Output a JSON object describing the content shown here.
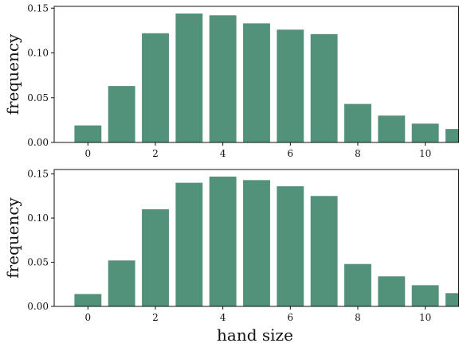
{
  "chart_data": [
    {
      "type": "bar",
      "ylabel": "frequency",
      "xlabel": "",
      "x": [
        0,
        1,
        2,
        3,
        4,
        5,
        6,
        7,
        8,
        9,
        10,
        11
      ],
      "values": [
        0.019,
        0.063,
        0.122,
        0.144,
        0.142,
        0.133,
        0.126,
        0.121,
        0.043,
        0.03,
        0.021,
        0.015
      ],
      "xticks": [
        "0",
        "2",
        "4",
        "6",
        "8",
        "10"
      ],
      "yticks": [
        "0.00",
        "0.05",
        "0.10",
        "0.15"
      ],
      "xlim": [
        -1,
        11
      ],
      "ylim": [
        0,
        0.152
      ],
      "color": "#52917a"
    },
    {
      "type": "bar",
      "ylabel": "frequency",
      "xlabel": "hand size",
      "x": [
        0,
        1,
        2,
        3,
        4,
        5,
        6,
        7,
        8,
        9,
        10,
        11
      ],
      "values": [
        0.014,
        0.052,
        0.11,
        0.14,
        0.147,
        0.143,
        0.136,
        0.125,
        0.048,
        0.034,
        0.024,
        0.015
      ],
      "xticks": [
        "0",
        "2",
        "4",
        "6",
        "8",
        "10"
      ],
      "yticks": [
        "0.00",
        "0.05",
        "0.10",
        "0.15"
      ],
      "xlim": [
        -1,
        11
      ],
      "ylim": [
        0,
        0.155
      ],
      "color": "#52917a"
    }
  ]
}
